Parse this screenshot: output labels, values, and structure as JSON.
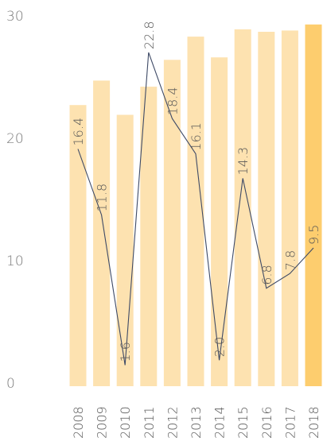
{
  "chart_data": {
    "type": "bar",
    "categories": [
      "2008",
      "2009",
      "2010",
      "2011",
      "2012",
      "2013",
      "2014",
      "2015",
      "2016",
      "2017",
      "2018"
    ],
    "series": [
      {
        "type": "bar",
        "values": [
          22.7,
          24.7,
          21.9,
          24.2,
          26.4,
          28.3,
          26.6,
          28.9,
          28.7,
          28.8,
          29.3
        ],
        "colors": [
          "#fde2b0",
          "#fde2b0",
          "#fde2b0",
          "#fde2b0",
          "#fde2b0",
          "#fde2b0",
          "#fde2b0",
          "#fde2b0",
          "#fde2b0",
          "#fde2b0",
          "#fdcd6e"
        ]
      },
      {
        "type": "line",
        "values": [
          19.1,
          13.7,
          1.4,
          27.0,
          21.6,
          18.7,
          1.8,
          16.7,
          7.7,
          8.9,
          11.0
        ],
        "labels": [
          "16.4",
          "11.8",
          "1.6",
          "22.8",
          "18.4",
          "16.1",
          "2.0",
          "14.3",
          "6.8",
          "7.8",
          "9.5"
        ],
        "color": "#3e4a66"
      }
    ],
    "yticks": [
      "0",
      "10",
      "20",
      "30"
    ],
    "ylim": [
      0,
      30
    ],
    "grid": false,
    "xlabel": "",
    "ylabel": ""
  }
}
